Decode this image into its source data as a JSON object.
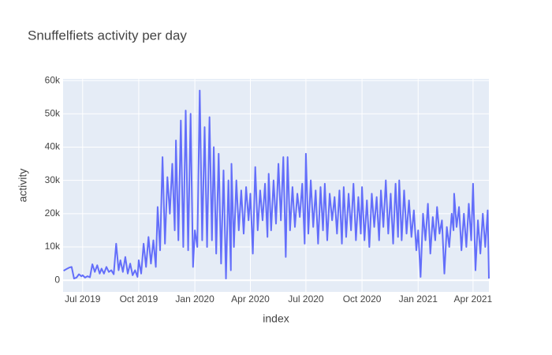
{
  "chart_data": {
    "type": "line",
    "title": "Snuffelfiets activity per day",
    "x_label": "index",
    "y_label": "activity",
    "x": [
      "2019-05-31",
      "2019-06-01",
      "2019-06-05",
      "2019-06-09",
      "2019-06-13",
      "2019-06-17",
      "2019-06-21",
      "2019-06-25",
      "2019-06-29",
      "2019-07-01",
      "2019-07-05",
      "2019-07-09",
      "2019-07-13",
      "2019-07-17",
      "2019-07-21",
      "2019-07-25",
      "2019-07-29",
      "2019-08-01",
      "2019-08-05",
      "2019-08-09",
      "2019-08-13",
      "2019-08-17",
      "2019-08-21",
      "2019-08-25",
      "2019-08-29",
      "2019-09-01",
      "2019-09-05",
      "2019-09-09",
      "2019-09-13",
      "2019-09-17",
      "2019-09-21",
      "2019-09-25",
      "2019-09-29",
      "2019-10-01",
      "2019-10-05",
      "2019-10-09",
      "2019-10-13",
      "2019-10-17",
      "2019-10-21",
      "2019-10-25",
      "2019-10-29",
      "2019-11-01",
      "2019-11-05",
      "2019-11-09",
      "2019-11-13",
      "2019-11-17",
      "2019-11-21",
      "2019-11-25",
      "2019-11-29",
      "2019-12-01",
      "2019-12-05",
      "2019-12-09",
      "2019-12-13",
      "2019-12-17",
      "2019-12-21",
      "2019-12-25",
      "2019-12-29",
      "2020-01-01",
      "2020-01-05",
      "2020-01-09",
      "2020-01-13",
      "2020-01-17",
      "2020-01-21",
      "2020-01-25",
      "2020-01-29",
      "2020-02-01",
      "2020-02-05",
      "2020-02-09",
      "2020-02-13",
      "2020-02-17",
      "2020-02-21",
      "2020-02-25",
      "2020-02-29",
      "2020-03-01",
      "2020-03-05",
      "2020-03-09",
      "2020-03-13",
      "2020-03-17",
      "2020-03-21",
      "2020-03-25",
      "2020-03-29",
      "2020-04-01",
      "2020-04-05",
      "2020-04-09",
      "2020-04-13",
      "2020-04-17",
      "2020-04-21",
      "2020-04-25",
      "2020-04-29",
      "2020-05-01",
      "2020-05-05",
      "2020-05-09",
      "2020-05-13",
      "2020-05-17",
      "2020-05-21",
      "2020-05-25",
      "2020-05-29",
      "2020-06-01",
      "2020-06-05",
      "2020-06-09",
      "2020-06-13",
      "2020-06-17",
      "2020-06-21",
      "2020-06-25",
      "2020-06-29",
      "2020-07-01",
      "2020-07-05",
      "2020-07-09",
      "2020-07-13",
      "2020-07-17",
      "2020-07-21",
      "2020-07-25",
      "2020-07-29",
      "2020-08-01",
      "2020-08-05",
      "2020-08-09",
      "2020-08-13",
      "2020-08-17",
      "2020-08-21",
      "2020-08-25",
      "2020-08-29",
      "2020-09-01",
      "2020-09-05",
      "2020-09-09",
      "2020-09-13",
      "2020-09-17",
      "2020-09-21",
      "2020-09-25",
      "2020-09-29",
      "2020-10-01",
      "2020-10-05",
      "2020-10-09",
      "2020-10-13",
      "2020-10-17",
      "2020-10-21",
      "2020-10-25",
      "2020-10-29",
      "2020-11-01",
      "2020-11-05",
      "2020-11-09",
      "2020-11-13",
      "2020-11-17",
      "2020-11-21",
      "2020-11-25",
      "2020-11-29",
      "2020-12-01",
      "2020-12-05",
      "2020-12-09",
      "2020-12-13",
      "2020-12-17",
      "2020-12-21",
      "2020-12-25",
      "2020-12-29",
      "2021-01-01",
      "2021-01-05",
      "2021-01-09",
      "2021-01-13",
      "2021-01-17",
      "2021-01-21",
      "2021-01-25",
      "2021-01-29",
      "2021-02-01",
      "2021-02-05",
      "2021-02-09",
      "2021-02-13",
      "2021-02-17",
      "2021-02-21",
      "2021-02-25",
      "2021-02-28",
      "2021-03-01",
      "2021-03-05",
      "2021-03-09",
      "2021-03-13",
      "2021-03-17",
      "2021-03-21",
      "2021-03-25",
      "2021-03-29",
      "2021-04-01",
      "2021-04-05",
      "2021-04-09",
      "2021-04-13",
      "2021-04-17",
      "2021-04-21",
      "2021-04-25",
      "2021-04-27"
    ],
    "series": [
      {
        "name": "activity",
        "color": "#636efa",
        "values": [
          2800,
          3000,
          3400,
          3800,
          4000,
          500,
          800,
          1800,
          1200,
          1500,
          800,
          1200,
          900,
          4800,
          2500,
          4500,
          2000,
          3500,
          2000,
          4000,
          2500,
          3000,
          1800,
          11000,
          3000,
          6000,
          2500,
          7000,
          2000,
          5000,
          1500,
          3000,
          1000,
          6000,
          2000,
          11000,
          4000,
          13000,
          5000,
          12000,
          4000,
          22000,
          9000,
          37000,
          11000,
          31000,
          20000,
          35000,
          15000,
          42000,
          12000,
          48000,
          10000,
          51000,
          9000,
          50000,
          4000,
          15000,
          10000,
          57000,
          12000,
          46000,
          10000,
          49000,
          12000,
          40000,
          8000,
          38000,
          5000,
          33000,
          500,
          30000,
          3000,
          35000,
          10000,
          30000,
          15000,
          27000,
          14000,
          28000,
          18000,
          26000,
          8000,
          34000,
          15000,
          27000,
          18000,
          29000,
          13000,
          32000,
          15000,
          30000,
          17000,
          35000,
          18000,
          37000,
          7000,
          37000,
          15000,
          28000,
          16000,
          26000,
          19000,
          29000,
          11000,
          38000,
          14000,
          30000,
          16000,
          27000,
          11000,
          28000,
          15000,
          29000,
          12000,
          26000,
          18000,
          25000,
          14000,
          27000,
          11000,
          28000,
          13000,
          26000,
          15000,
          29000,
          12000,
          25000,
          14000,
          28000,
          12000,
          24000,
          10000,
          26000,
          16000,
          25000,
          12000,
          27000,
          16000,
          30000,
          14000,
          26000,
          11000,
          29000,
          13000,
          30000,
          12000,
          27000,
          14000,
          24000,
          13000,
          21000,
          9000,
          15000,
          1000,
          20000,
          12000,
          23000,
          8000,
          19000,
          12000,
          22000,
          14000,
          18000,
          2000,
          16000,
          10000,
          20000,
          15000,
          26000,
          16000,
          22000,
          9000,
          20000,
          10000,
          23000,
          12000,
          29000,
          3000,
          18000,
          8000,
          20000,
          10000,
          21000,
          500
        ]
      }
    ],
    "xlim": [
      "2019-05-30",
      "2021-04-27"
    ],
    "xticks": [
      {
        "value": "2019-07-01",
        "label": "Jul 2019"
      },
      {
        "value": "2019-10-01",
        "label": "Oct 2019"
      },
      {
        "value": "2020-01-01",
        "label": "Jan 2020"
      },
      {
        "value": "2020-04-01",
        "label": "Apr 2020"
      },
      {
        "value": "2020-07-01",
        "label": "Jul 2020"
      },
      {
        "value": "2020-10-01",
        "label": "Oct 2020"
      },
      {
        "value": "2021-01-01",
        "label": "Jan 2021"
      },
      {
        "value": "2021-04-01",
        "label": "Apr 2021"
      }
    ],
    "ylim": [
      -3500,
      60500
    ],
    "yticks": [
      0,
      {
        "value": 10000,
        "label": "10k"
      },
      {
        "value": 20000,
        "label": "20k"
      },
      {
        "value": 30000,
        "label": "30k"
      },
      {
        "value": 40000,
        "label": "40k"
      },
      {
        "value": 50000,
        "label": "50k"
      },
      {
        "value": 60000,
        "label": "60k"
      }
    ],
    "grid": true
  }
}
